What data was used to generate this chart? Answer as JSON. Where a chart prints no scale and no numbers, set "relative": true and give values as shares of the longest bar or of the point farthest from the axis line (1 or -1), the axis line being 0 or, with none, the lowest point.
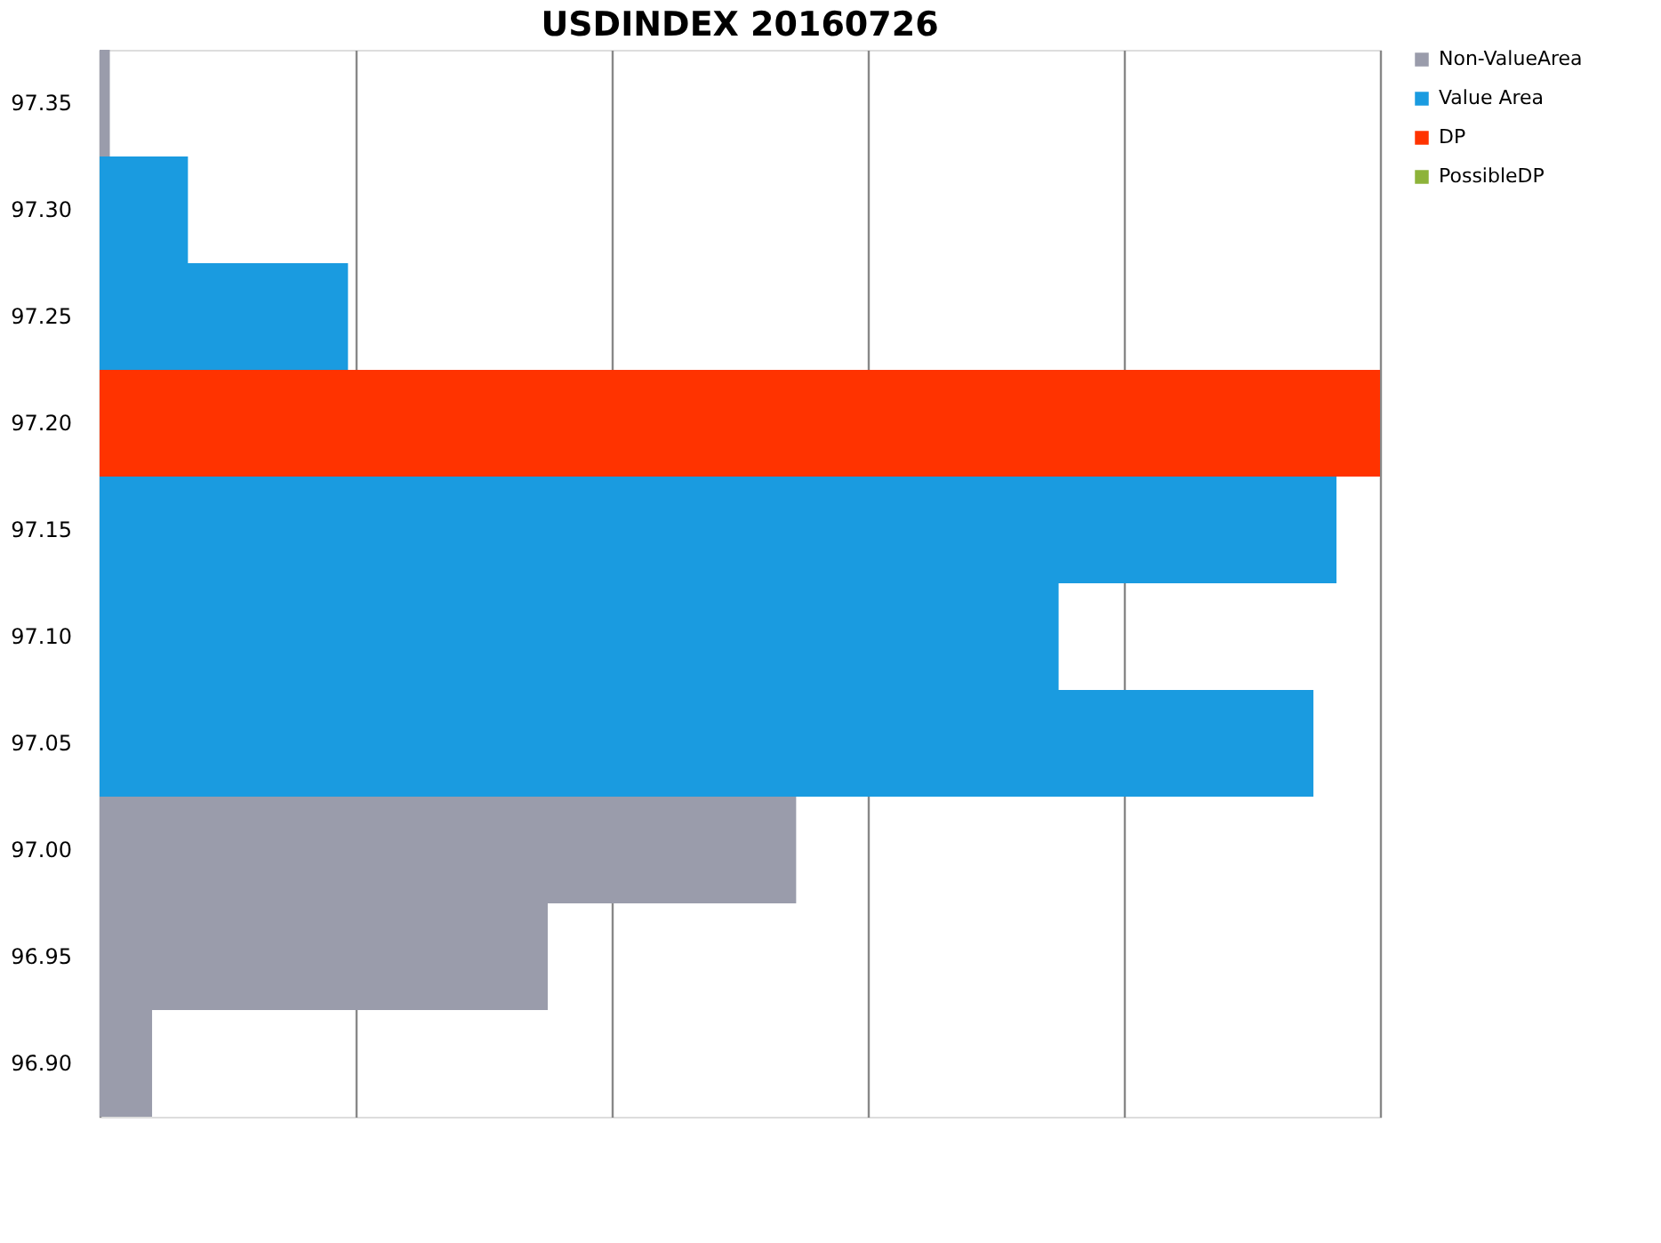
{
  "chart_data": {
    "type": "bar",
    "title": "USDINDEX 20160726",
    "orientation": "horizontal",
    "relative": true,
    "grid": "x",
    "legend": "right",
    "categories": [
      "97.35",
      "97.30",
      "97.25",
      "97.20",
      "97.15",
      "97.10",
      "97.05",
      "97.00",
      "96.95",
      "96.90"
    ],
    "series": [
      {
        "name": "Non-ValueArea",
        "color": "#9a9cab",
        "values": [
          0.008,
          null,
          null,
          null,
          null,
          null,
          null,
          0.544,
          0.35,
          0.041
        ]
      },
      {
        "name": "Value Area",
        "color": "#1a9be0",
        "values": [
          null,
          0.069,
          0.194,
          null,
          0.966,
          0.749,
          0.948,
          null,
          null,
          null
        ]
      },
      {
        "name": "DP",
        "color": "#ff3300",
        "values": [
          null,
          null,
          null,
          1,
          null,
          null,
          null,
          null,
          null,
          null
        ]
      },
      {
        "name": "PossibleDP",
        "color": "#8db33a",
        "values": [
          null,
          null,
          null,
          null,
          null,
          null,
          null,
          null,
          null,
          null
        ]
      }
    ]
  }
}
